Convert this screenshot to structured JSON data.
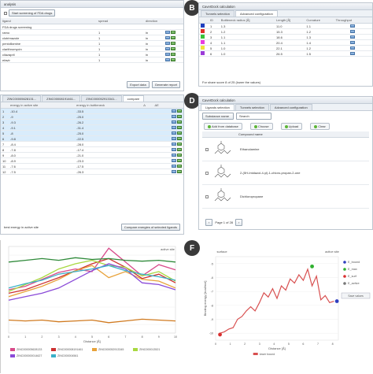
{
  "panelA": {
    "title": "analysis",
    "checkbox_label": "Start screening of FDA drugs",
    "columns": [
      "ligand",
      "spread",
      "direction"
    ],
    "rows": [
      {
        "name": "FDA drugs screening",
        "spread": "",
        "dir": ""
      },
      {
        "name": "ramo",
        "spread": "1",
        "dir": "in"
      },
      {
        "name": "clotrimazole",
        "spread": "1",
        "dir": "in"
      },
      {
        "name": "penicillamine",
        "spread": "1",
        "dir": "in"
      },
      {
        "name": "clarithromycin",
        "spread": "1",
        "dir": "in"
      },
      {
        "name": "cilazapril",
        "spread": "1",
        "dir": "in"
      },
      {
        "name": "efavir",
        "spread": "1",
        "dir": "in"
      }
    ],
    "buttons": [
      "Export data",
      "Generate report"
    ]
  },
  "panelB": {
    "letter": "B",
    "title": "CaverDock calculation",
    "tabs": [
      "Tunnels selection",
      "Advanced configuration"
    ],
    "columns": [
      "ID",
      "Bottleneck radius [Å]",
      "Length [Å]",
      "Curvature",
      "Throughput"
    ],
    "rows": [
      {
        "id": "1",
        "radius": "1.3",
        "length": "11.0",
        "curv": "1.1",
        "color": "#1f3fbf"
      },
      {
        "id": "2",
        "radius": "1.2",
        "length": "15.3",
        "curv": "1.2",
        "color": "#e0302a"
      },
      {
        "id": "3",
        "radius": "1.1",
        "length": "18.6",
        "curv": "1.3",
        "color": "#38c23a"
      },
      {
        "id": "4",
        "radius": "1.1",
        "length": "20.4",
        "curv": "1.4",
        "color": "#e83ce0"
      },
      {
        "id": "5",
        "radius": "1.0",
        "length": "22.1",
        "curv": "1.2",
        "color": "#f0e23a"
      },
      {
        "id": "6",
        "radius": "1.0",
        "length": "26.5",
        "curv": "1.5",
        "color": "#9b3ad8"
      }
    ],
    "footer": "For share score 8 of 25 (lower the values)"
  },
  "panelC": {
    "tabs": [
      "ZINC00005628131...",
      "ZINC00008191461...",
      "ZINC000052913341...",
      "compare"
    ],
    "columns": [
      "",
      "energy in active site",
      "energy in bottleneck",
      "Δ",
      "ΔE"
    ],
    "rows": [
      {
        "n": "1",
        "a": "-10.4",
        "b": "-33.5"
      },
      {
        "n": "2",
        "a": "-9",
        "b": "-25.0"
      },
      {
        "n": "3",
        "a": "-9.3",
        "b": "-26.2"
      },
      {
        "n": "4",
        "a": "-9.1",
        "b": "-31.4"
      },
      {
        "n": "5",
        "a": "-8",
        "b": "-25.0"
      },
      {
        "n": "6",
        "a": "-9.8",
        "b": "-22.5"
      },
      {
        "n": "7",
        "a": "-8.4",
        "b": "-28.0"
      },
      {
        "n": "8",
        "a": "-7.8",
        "b": "-17.4"
      },
      {
        "n": "9",
        "a": "-8.0",
        "b": "-21.0"
      },
      {
        "n": "10",
        "a": "-8.9",
        "b": "-23.3"
      },
      {
        "n": "11",
        "a": "-7.6",
        "b": "-17.5"
      },
      {
        "n": "12",
        "a": "-7.5",
        "b": "-26.3"
      }
    ],
    "footer_label": "best energy in active site",
    "footer_button": "Compare energies of selected ligands"
  },
  "panelD": {
    "letter": "D",
    "title": "CaverDock calculation",
    "tabs": [
      "Ligands selection",
      "Tunnels selection",
      "Advanced configuration"
    ],
    "filter_value": "Substance name",
    "filter_input": "Search",
    "buttons": [
      "Add from database",
      "Choose",
      "Upload",
      "Clear"
    ],
    "column": "Compound name",
    "compounds": [
      "Ethanolamine",
      "2-(5H-Imidazol-4-yl)-1-chloro-propan-2-one",
      "Dichloropropane"
    ],
    "pager": "Page 1 of 28"
  },
  "panelE": {
    "legend_title": "active site",
    "xlabel": "Distance [Å]",
    "xticks": [
      "0",
      "1",
      "2",
      "3",
      "4",
      "5",
      "6",
      "7",
      "8",
      "9",
      "10"
    ],
    "legend": [
      "ZINC000005628133",
      "ZINC000008191461",
      "ZINC000052913345",
      "ZINC000013521",
      "ZINC000000014627",
      "ZINC000004561"
    ]
  },
  "panelF": {
    "letter": "F",
    "top_left": "surface",
    "top_right": "active site",
    "ylabel": "Binding energy [kcal/mol]",
    "xlabel": "Distance [Å]",
    "xticks": [
      "0",
      "1",
      "2",
      "3",
      "4",
      "5",
      "6",
      "7",
      "8"
    ],
    "yticks": [
      "-5",
      "-6",
      "-7",
      "-8",
      "-9",
      "-10"
    ],
    "legend_entries": [
      "E_bound",
      "E_max",
      "E_surf",
      "E_active"
    ],
    "legend_button": "Save values",
    "series_name": "lower bound"
  },
  "chart_data": [
    {
      "type": "line",
      "xlabel": "Distance [Å]",
      "x": [
        0,
        1,
        2,
        3,
        4,
        5,
        6,
        7,
        8,
        9,
        10
      ],
      "series": [
        {
          "name": "ZINC000005628133",
          "color": "#d84a8a",
          "values": [
            -6.0,
            -5.6,
            -4.8,
            -4.0,
            -3.6,
            -3.9,
            -1.2,
            -2.8,
            -4.4,
            -3.1,
            -3.7
          ]
        },
        {
          "name": "ZINC000008191461",
          "color": "#cc3030",
          "values": [
            -6.4,
            -6.0,
            -5.3,
            -4.6,
            -3.8,
            -3.0,
            -2.4,
            -3.4,
            -4.7,
            -4.2,
            -5.2
          ]
        },
        {
          "name": "ZINC000052913345",
          "color": "#e8a23a",
          "values": [
            -6.8,
            -6.2,
            -5.6,
            -4.8,
            -3.8,
            -3.2,
            -4.6,
            -3.9,
            -4.8,
            -5.0,
            -5.8
          ]
        },
        {
          "name": "ZINC000013521",
          "color": "#a8d840",
          "values": [
            -6.2,
            -5.4,
            -4.6,
            -3.6,
            -3.0,
            -2.6,
            -3.2,
            -3.4,
            -4.4,
            -3.9,
            -5.0
          ]
        },
        {
          "name": "ZINC000000014627",
          "color": "#8a4ad8",
          "values": [
            -7.2,
            -6.8,
            -6.4,
            -5.8,
            -4.8,
            -3.8,
            -3.0,
            -3.6,
            -5.2,
            -5.4,
            -6.0
          ]
        },
        {
          "name": "ZINC000004561",
          "color": "#3ab0c8",
          "values": [
            -5.8,
            -5.3,
            -4.9,
            -4.2,
            -3.9,
            -3.6,
            -3.2,
            -3.8,
            -4.2,
            -4.5,
            -4.9
          ]
        },
        {
          "name": "",
          "color": "#2f8a3a",
          "values": [
            -2.8,
            -2.6,
            -2.4,
            -2.6,
            -2.3,
            -2.5,
            -2.4,
            -2.6,
            -2.7,
            -2.6,
            -2.8
          ]
        },
        {
          "name": "",
          "color": "#d07a20",
          "values": [
            -9.5,
            -9.6,
            -9.5,
            -9.7,
            -9.6,
            -9.5,
            -9.8,
            -9.6,
            -9.4,
            -9.5,
            -9.6
          ]
        }
      ]
    },
    {
      "type": "line",
      "xlabel": "Distance [Å]",
      "ylabel": "Binding energy [kcal/mol]",
      "ylim": [
        -10.5,
        -4.5
      ],
      "xlim": [
        0,
        8.4
      ],
      "series": [
        {
          "name": "lower bound",
          "color": "#d85050",
          "x": [
            0.3,
            0.6,
            0.9,
            1.2,
            1.5,
            1.8,
            2.1,
            2.4,
            2.7,
            3.0,
            3.3,
            3.6,
            3.9,
            4.2,
            4.5,
            4.8,
            5.1,
            5.4,
            5.7,
            6.0,
            6.3,
            6.6,
            6.9,
            7.2,
            7.5,
            7.8,
            8.1
          ],
          "values": [
            -10.0,
            -9.9,
            -9.7,
            -9.6,
            -9.0,
            -8.8,
            -8.4,
            -8.1,
            -8.4,
            -7.8,
            -7.1,
            -7.4,
            -6.8,
            -7.5,
            -6.6,
            -6.9,
            -6.1,
            -6.4,
            -5.8,
            -6.2,
            -5.4,
            -6.6,
            -5.9,
            -7.6,
            -7.3,
            -7.8,
            -7.7
          ]
        }
      ],
      "markers": [
        {
          "name": "E_max",
          "x": 6.6,
          "y": -5.2,
          "color": "#2fb02f"
        },
        {
          "name": "E_surf",
          "x": 0.3,
          "y": -10.1,
          "color": "#d83030"
        },
        {
          "name": "E_active",
          "x": 8.3,
          "y": -7.7,
          "color": "#2f3fbf"
        }
      ]
    }
  ]
}
